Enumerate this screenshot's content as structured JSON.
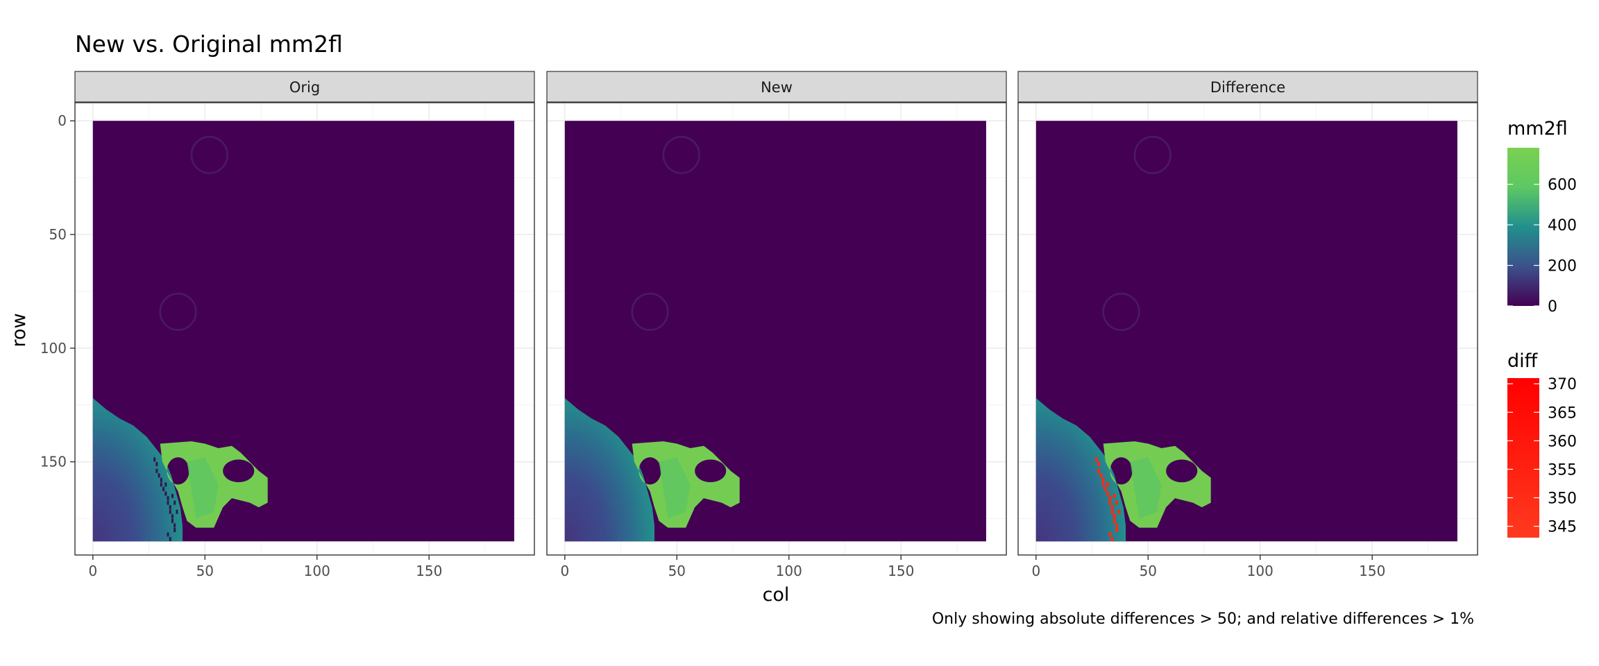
{
  "title": "New vs. Original mm2fl",
  "caption": "Only showing absolute differences > 50; and relative differences > 1%",
  "chart_data": {
    "type": "heatmap",
    "panels": [
      "Orig",
      "New",
      "Difference"
    ],
    "xlabel": "col",
    "ylabel": "row",
    "xlim": [
      -8,
      197
    ],
    "ylim": [
      191,
      -8
    ],
    "x_ticks": [
      0,
      50,
      100,
      150
    ],
    "y_ticks": [
      0,
      50,
      100,
      150
    ],
    "grid": true,
    "raster_extent": {
      "col": [
        0,
        188
      ],
      "row": [
        0,
        185
      ]
    },
    "background_value": 0,
    "features": [
      {
        "name": "gradient-fan",
        "value_range": [
          100,
          450
        ],
        "region_cols": [
          0,
          40
        ],
        "region_rows": [
          122,
          185
        ]
      },
      {
        "name": "bright-blob",
        "value_range": [
          600,
          780
        ],
        "region_cols": [
          30,
          78
        ],
        "region_rows": [
          141,
          179
        ]
      },
      {
        "name": "faint-ring",
        "value": 30,
        "center": [
          52,
          15
        ],
        "radius": 8
      },
      {
        "name": "faint-ring",
        "value": 30,
        "center": [
          38,
          84
        ],
        "radius": 8
      }
    ],
    "legends": [
      {
        "title": "mm2fl",
        "type": "colorbar",
        "range": [
          0,
          780
        ],
        "ticks": [
          0,
          200,
          400,
          600
        ],
        "colors": [
          "#440154",
          "#3b528b",
          "#21908d",
          "#5dc863",
          "#7ad151"
        ]
      },
      {
        "title": "diff",
        "type": "colorbar",
        "range": [
          343,
          371
        ],
        "ticks": [
          345,
          350,
          355,
          360,
          365,
          370
        ],
        "colors": [
          "#ff3a1f",
          "#ff0000"
        ]
      }
    ],
    "diff_points": [
      [
        27,
        149
      ],
      [
        28,
        151
      ],
      [
        28,
        154
      ],
      [
        29,
        156
      ],
      [
        30,
        158
      ],
      [
        30,
        160
      ],
      [
        31,
        162
      ],
      [
        32,
        164
      ],
      [
        33,
        166
      ],
      [
        33,
        168
      ],
      [
        34,
        170
      ],
      [
        34,
        172
      ],
      [
        35,
        174
      ],
      [
        35,
        176
      ],
      [
        36,
        178
      ],
      [
        36,
        180
      ],
      [
        33,
        182
      ],
      [
        34,
        184
      ],
      [
        32,
        160
      ],
      [
        35,
        165
      ],
      [
        36,
        168
      ],
      [
        37,
        172
      ]
    ]
  }
}
